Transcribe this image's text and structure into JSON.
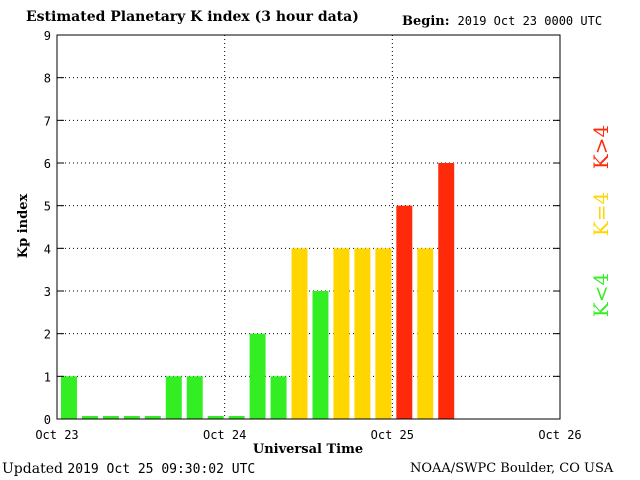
{
  "header": {
    "title": "Estimated Planetary K index (3 hour data)",
    "begin_label": "Begin:",
    "begin_value": "2019 Oct 23 0000 UTC"
  },
  "footer": {
    "updated_label": "Updated",
    "updated_value": "2019 Oct 25 09:30:02 UTC",
    "credit": "NOAA/SWPC Boulder, CO USA"
  },
  "legend": [
    {
      "label": "K<4",
      "color": "#33ee22"
    },
    {
      "label": "K=4",
      "color": "#ffd600"
    },
    {
      "label": "K>4",
      "color": "#ff2a0a"
    }
  ],
  "chart_data": {
    "type": "bar",
    "title": "Estimated Planetary K index (3 hour data)",
    "xlabel": "Universal Time",
    "ylabel": "Kp index",
    "ylim": [
      0,
      9
    ],
    "yticks": [
      0,
      1,
      2,
      3,
      4,
      5,
      6,
      7,
      8,
      9
    ],
    "xticks": [
      "Oct 23",
      "Oct 24",
      "Oct 25",
      "Oct 26"
    ],
    "x_start": "2019-10-23T00:00Z",
    "x_end": "2019-10-26T00:00Z",
    "grid": true,
    "bars": [
      {
        "time": "2019-10-23T00:00Z",
        "value": 1
      },
      {
        "time": "2019-10-23T03:00Z",
        "value": 0
      },
      {
        "time": "2019-10-23T06:00Z",
        "value": 0
      },
      {
        "time": "2019-10-23T09:00Z",
        "value": 0
      },
      {
        "time": "2019-10-23T12:00Z",
        "value": 0
      },
      {
        "time": "2019-10-23T15:00Z",
        "value": 1
      },
      {
        "time": "2019-10-23T18:00Z",
        "value": 1
      },
      {
        "time": "2019-10-23T21:00Z",
        "value": 0
      },
      {
        "time": "2019-10-24T00:00Z",
        "value": 0
      },
      {
        "time": "2019-10-24T03:00Z",
        "value": 2
      },
      {
        "time": "2019-10-24T06:00Z",
        "value": 1
      },
      {
        "time": "2019-10-24T09:00Z",
        "value": 4
      },
      {
        "time": "2019-10-24T12:00Z",
        "value": 3
      },
      {
        "time": "2019-10-24T15:00Z",
        "value": 4
      },
      {
        "time": "2019-10-24T18:00Z",
        "value": 4
      },
      {
        "time": "2019-10-24T21:00Z",
        "value": 4
      },
      {
        "time": "2019-10-25T00:00Z",
        "value": 5
      },
      {
        "time": "2019-10-25T03:00Z",
        "value": 4
      },
      {
        "time": "2019-10-25T06:00Z",
        "value": 6
      }
    ]
  }
}
